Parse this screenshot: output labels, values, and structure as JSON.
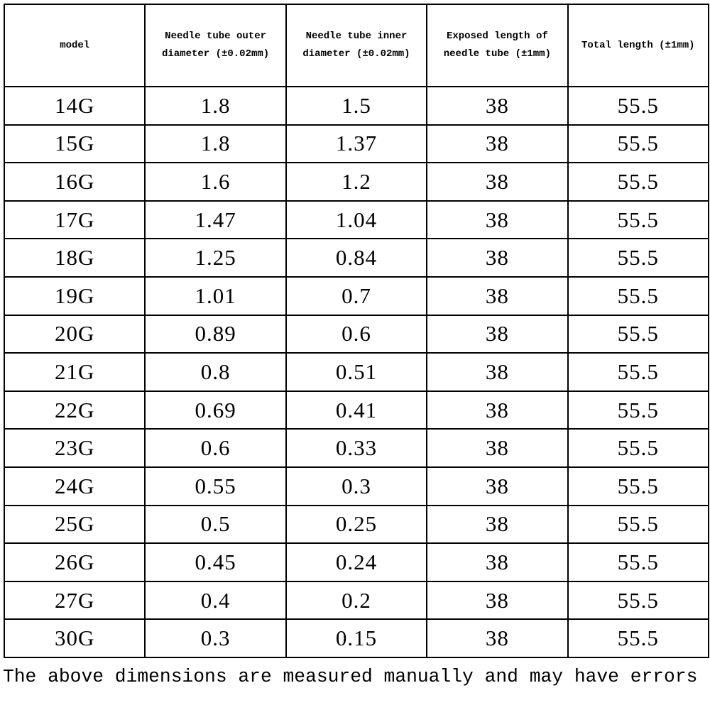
{
  "table": {
    "headers": [
      "model",
      "Needle tube outer diameter (±0.02mm)",
      "Needle tube inner diameter (±0.02mm)",
      "Exposed length of needle tube (±1mm)",
      "Total length (±1mm)"
    ],
    "rows": [
      [
        "14G",
        "1.8",
        "1.5",
        "38",
        "55.5"
      ],
      [
        "15G",
        "1.8",
        "1.37",
        "38",
        "55.5"
      ],
      [
        "16G",
        "1.6",
        "1.2",
        "38",
        "55.5"
      ],
      [
        "17G",
        "1.47",
        "1.04",
        "38",
        "55.5"
      ],
      [
        "18G",
        "1.25",
        "0.84",
        "38",
        "55.5"
      ],
      [
        "19G",
        "1.01",
        "0.7",
        "38",
        "55.5"
      ],
      [
        "20G",
        "0.89",
        "0.6",
        "38",
        "55.5"
      ],
      [
        "21G",
        "0.8",
        "0.51",
        "38",
        "55.5"
      ],
      [
        "22G",
        "0.69",
        "0.41",
        "38",
        "55.5"
      ],
      [
        "23G",
        "0.6",
        "0.33",
        "38",
        "55.5"
      ],
      [
        "24G",
        "0.55",
        "0.3",
        "38",
        "55.5"
      ],
      [
        "25G",
        "0.5",
        "0.25",
        "38",
        "55.5"
      ],
      [
        "26G",
        "0.45",
        "0.24",
        "38",
        "55.5"
      ],
      [
        "27G",
        "0.4",
        "0.2",
        "38",
        "55.5"
      ],
      [
        "30G",
        "0.3",
        "0.15",
        "38",
        "55.5"
      ]
    ]
  },
  "footnote": "The above dimensions are measured manually and may have errors"
}
